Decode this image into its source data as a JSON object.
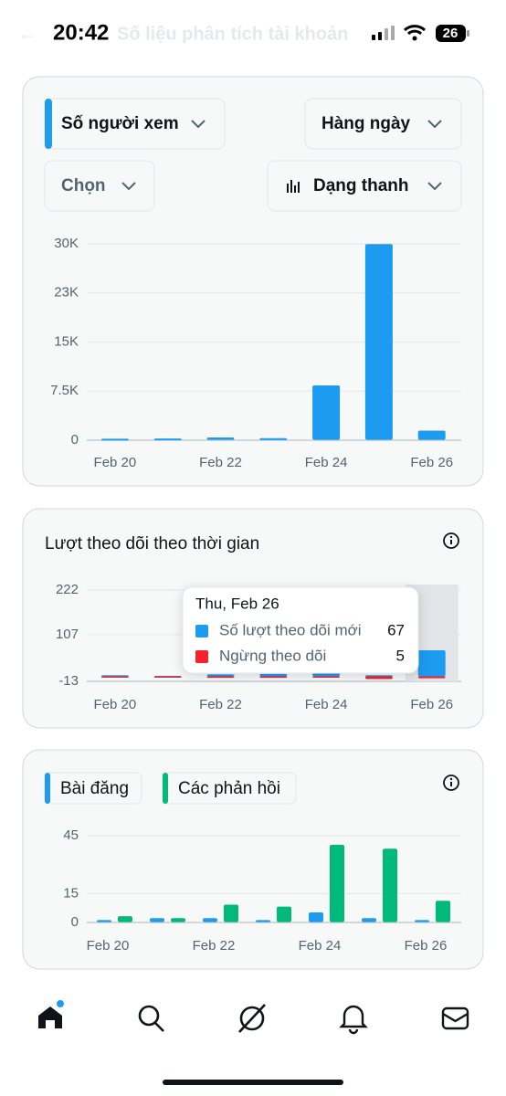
{
  "status": {
    "time": "20:42",
    "battery": "26"
  },
  "header": {
    "title": "Số liệu phân tích tài khoản"
  },
  "controls": {
    "metric": "Số người xem",
    "interval": "Hàng ngày",
    "select": "Chọn",
    "chart_style": "Dạng thanh"
  },
  "chart_data": [
    {
      "type": "bar",
      "categories": [
        "Feb 20",
        null,
        "Feb 22",
        null,
        "Feb 24",
        null,
        "Feb 26"
      ],
      "values": [
        150,
        200,
        350,
        250,
        8300,
        29900,
        1400
      ],
      "color": "#1d9bf0",
      "ylim": [
        0,
        30000
      ],
      "yticks": [
        0,
        {
          "value": 7500,
          "label": "7.5K"
        },
        {
          "value": 15000,
          "label": "15K"
        },
        {
          "value": 22500,
          "label": "23K"
        },
        {
          "value": 30000,
          "label": "30K"
        }
      ],
      "grid": true
    },
    {
      "type": "diverging_bar",
      "title": "Lượt theo dõi theo thời gian",
      "categories": [
        "Feb 20",
        null,
        "Feb 22",
        null,
        "Feb 24",
        null,
        "Feb 26"
      ],
      "series": [
        {
          "name": "Số lượt theo dõi mới",
          "color": "#1d9bf0",
          "values": [
            3,
            1,
            5,
            6,
            8,
            3,
            67
          ]
        },
        {
          "name": "Ngừng theo dõi",
          "color": "#f4212e",
          "values": [
            1,
            2,
            4,
            4,
            3,
            7,
            5
          ]
        }
      ],
      "ylim": [
        -13,
        222
      ],
      "yticks": [
        -13,
        107,
        222
      ],
      "grid": true,
      "tooltip": {
        "title": "Thu, Feb 26"
      }
    },
    {
      "type": "grouped_bar",
      "categories": [
        "Feb 20",
        null,
        "Feb 22",
        null,
        "Feb 24",
        null,
        "Feb 26"
      ],
      "series": [
        {
          "name": "Bài đăng",
          "color": "#1d9bf0",
          "values": [
            1,
            2,
            2,
            1,
            5,
            2,
            1
          ]
        },
        {
          "name": "Các phản hồi",
          "color": "#00ba7c",
          "values": [
            3,
            2,
            9,
            8,
            40,
            38,
            11
          ]
        }
      ],
      "ylim": [
        0,
        45
      ],
      "yticks": [
        0,
        15,
        45
      ],
      "grid": true
    }
  ]
}
